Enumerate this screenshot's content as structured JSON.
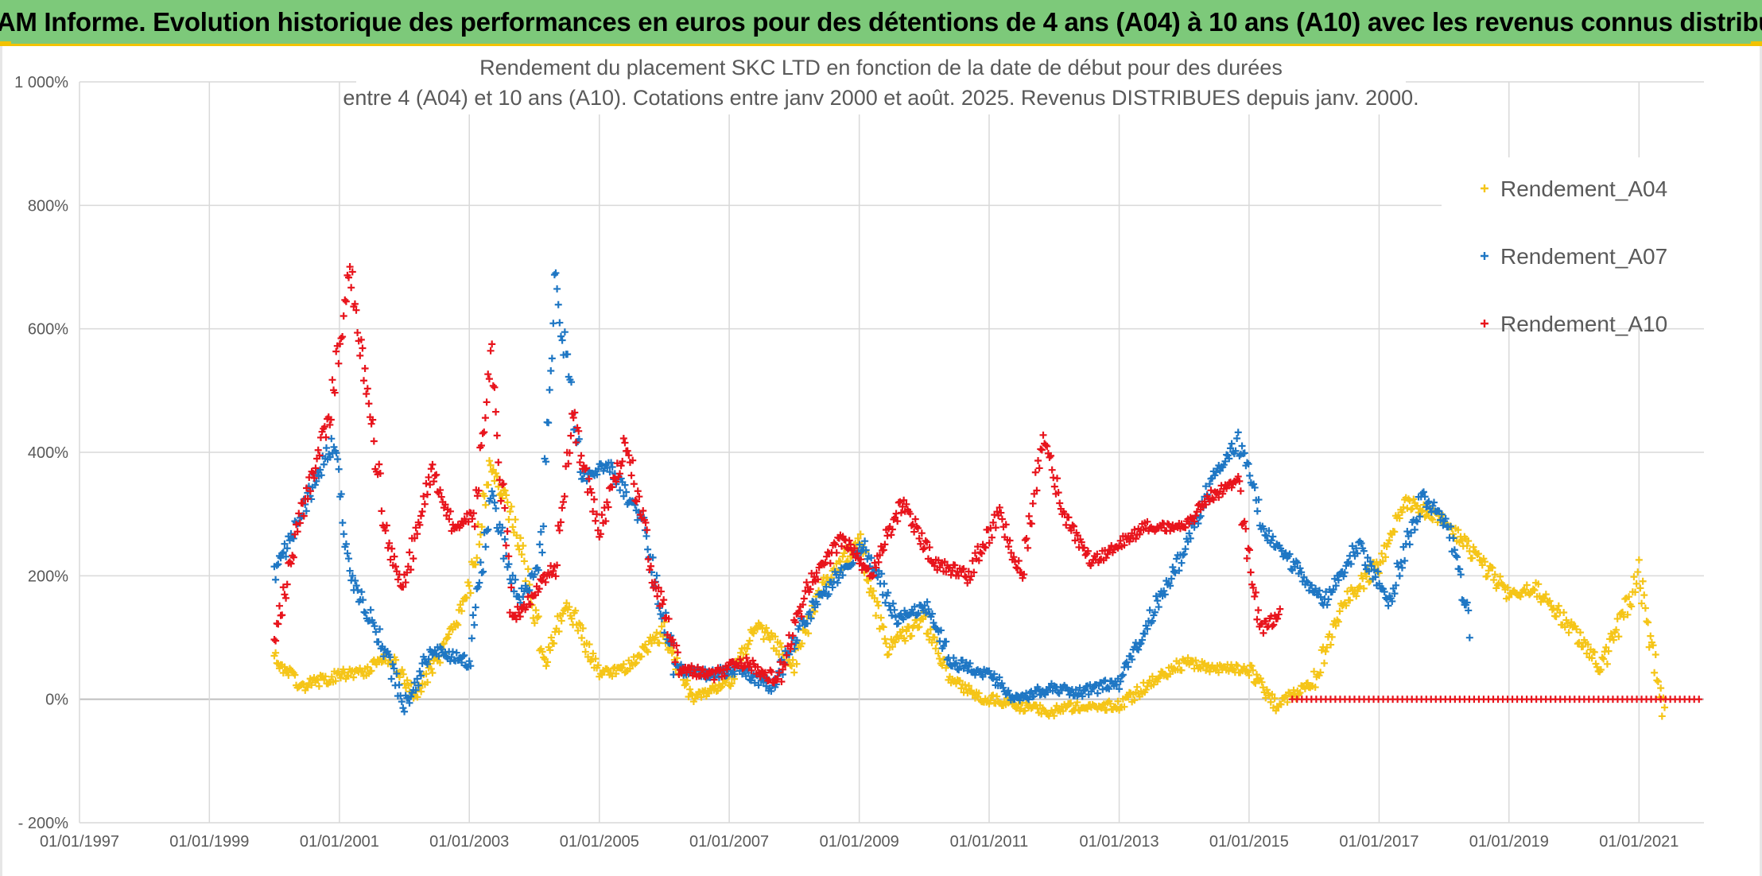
{
  "header": {
    "title": "ADAM Informe. Evolution historique des performances en euros pour des détentions de 4 ans (A04) à 10 ans (A10) avec les revenus connus distribués"
  },
  "chart_data": {
    "type": "scatter",
    "title_lines": [
      "Rendement du placement SKC LTD en fonction de la date de début pour des durées",
      "entre 4 (A04) et 10 ans (A10). Cotations entre janv 2000 et août. 2025. Revenus DISTRIBUES depuis janv. 2000."
    ],
    "x_axis": {
      "type": "date",
      "min": "1997-01-01",
      "max": "2022-01-01",
      "ticks": [
        "1997-01-01",
        "1999-01-01",
        "2001-01-01",
        "2003-01-01",
        "2005-01-01",
        "2007-01-01",
        "2009-01-01",
        "2011-01-01",
        "2013-01-01",
        "2015-01-01",
        "2017-01-01",
        "2019-01-01",
        "2021-01-01"
      ],
      "tick_labels": [
        "01/01/1997",
        "01/01/1999",
        "01/01/2001",
        "01/01/2003",
        "01/01/2005",
        "01/01/2007",
        "01/01/2009",
        "01/01/2011",
        "01/01/2013",
        "01/01/2015",
        "01/01/2017",
        "01/01/2019",
        "01/01/2021"
      ]
    },
    "y_axis": {
      "min": -200,
      "max": 1000,
      "unit": "%",
      "ticks": [
        -200,
        0,
        200,
        400,
        600,
        800,
        1000
      ],
      "tick_labels": [
        "- 200%",
        "0%",
        "200%",
        "400%",
        "600%",
        "800%",
        "1 000%"
      ]
    },
    "grid": true,
    "legend_position": "right",
    "marker": "+",
    "series": [
      {
        "name": "Rendement_A04",
        "color": "#f5c518",
        "x": [
          "2000-01-01",
          "2000-06-01",
          "2001-01-01",
          "2001-06-01",
          "2001-10-01",
          "2002-03-01",
          "2002-09-01",
          "2003-01-01",
          "2003-05-01",
          "2003-10-01",
          "2004-03-01",
          "2004-07-01",
          "2005-01-01",
          "2005-06-01",
          "2006-01-01",
          "2006-06-01",
          "2007-01-01",
          "2007-06-01",
          "2008-01-01",
          "2008-06-01",
          "2009-01-01",
          "2009-06-01",
          "2010-01-01",
          "2010-06-01",
          "2011-01-01",
          "2011-06-01",
          "2012-01-01",
          "2012-06-01",
          "2013-01-01",
          "2013-06-01",
          "2014-01-01",
          "2014-06-01",
          "2015-01-01",
          "2015-06-01",
          "2016-01-01",
          "2016-06-01",
          "2017-01-01",
          "2017-06-01",
          "2018-01-01",
          "2018-06-01",
          "2019-01-01",
          "2019-06-01",
          "2020-01-01",
          "2020-06-01",
          "2021-01-01",
          "2021-06-01"
        ],
        "y": [
          70,
          20,
          40,
          45,
          70,
          10,
          90,
          180,
          380,
          270,
          60,
          160,
          40,
          50,
          110,
          0,
          30,
          120,
          60,
          180,
          260,
          80,
          130,
          30,
          0,
          -10,
          -20,
          -10,
          -10,
          20,
          60,
          50,
          50,
          -10,
          30,
          150,
          220,
          320,
          290,
          240,
          170,
          180,
          110,
          50,
          200,
          -40
        ]
      },
      {
        "name": "Rendement_A07",
        "color": "#1f77c4",
        "x": [
          "2000-01-01",
          "2000-06-01",
          "2000-12-01",
          "2001-03-01",
          "2001-08-01",
          "2002-01-01",
          "2002-06-01",
          "2003-01-01",
          "2003-05-01",
          "2003-10-01",
          "2004-02-01",
          "2004-05-01",
          "2004-10-01",
          "2005-03-01",
          "2005-09-01",
          "2006-03-01",
          "2006-09-01",
          "2007-03-01",
          "2007-09-01",
          "2008-03-01",
          "2008-09-01",
          "2009-02-01",
          "2009-08-01",
          "2010-02-01",
          "2010-06-01",
          "2011-01-01",
          "2011-06-01",
          "2012-01-01",
          "2012-06-01",
          "2013-01-01",
          "2013-06-01",
          "2014-01-01",
          "2014-06-01",
          "2014-11-01",
          "2015-04-01",
          "2015-09-01",
          "2016-03-01",
          "2016-09-01",
          "2017-03-01",
          "2017-09-01",
          "2018-02-01",
          "2018-06-01"
        ],
        "y": [
          200,
          300,
          420,
          200,
          110,
          -10,
          80,
          60,
          330,
          160,
          210,
          680,
          360,
          380,
          280,
          50,
          40,
          50,
          20,
          130,
          200,
          250,
          130,
          150,
          60,
          40,
          0,
          20,
          10,
          30,
          120,
          240,
          350,
          420,
          270,
          220,
          160,
          250,
          160,
          330,
          280,
          110
        ]
      },
      {
        "name": "Rendement_A10",
        "color": "#e8141c",
        "x": [
          "2000-01-01",
          "2000-06-01",
          "2000-11-01",
          "2001-03-01",
          "2001-06-01",
          "2001-10-01",
          "2002-01-01",
          "2002-06-01",
          "2002-10-01",
          "2003-02-01",
          "2003-05-01",
          "2003-09-01",
          "2004-01-01",
          "2004-05-01",
          "2004-08-01",
          "2005-01-01",
          "2005-06-01",
          "2005-11-01",
          "2006-04-01",
          "2006-10-01",
          "2007-04-01",
          "2007-10-01",
          "2008-04-01",
          "2008-10-01",
          "2009-03-01",
          "2009-09-01",
          "2010-03-01",
          "2010-09-01",
          "2011-03-01",
          "2011-07-01",
          "2011-11-01",
          "2012-03-01",
          "2012-08-01",
          "2013-01-01",
          "2013-06-01",
          "2014-01-01",
          "2014-06-01",
          "2014-11-01",
          "2015-03-01",
          "2015-07-01"
        ],
        "y": [
          100,
          300,
          450,
          700,
          500,
          250,
          180,
          380,
          280,
          300,
          560,
          130,
          170,
          220,
          460,
          270,
          420,
          200,
          50,
          40,
          60,
          30,
          190,
          260,
          200,
          320,
          220,
          200,
          300,
          200,
          420,
          300,
          220,
          250,
          280,
          280,
          330,
          350,
          110,
          140
        ]
      },
      {
        "name": "Rendement_A10",
        "color": "#e8141c",
        "x": [
          "2015-09-01",
          "2021-12-31"
        ],
        "y": [
          0,
          0
        ]
      }
    ]
  }
}
